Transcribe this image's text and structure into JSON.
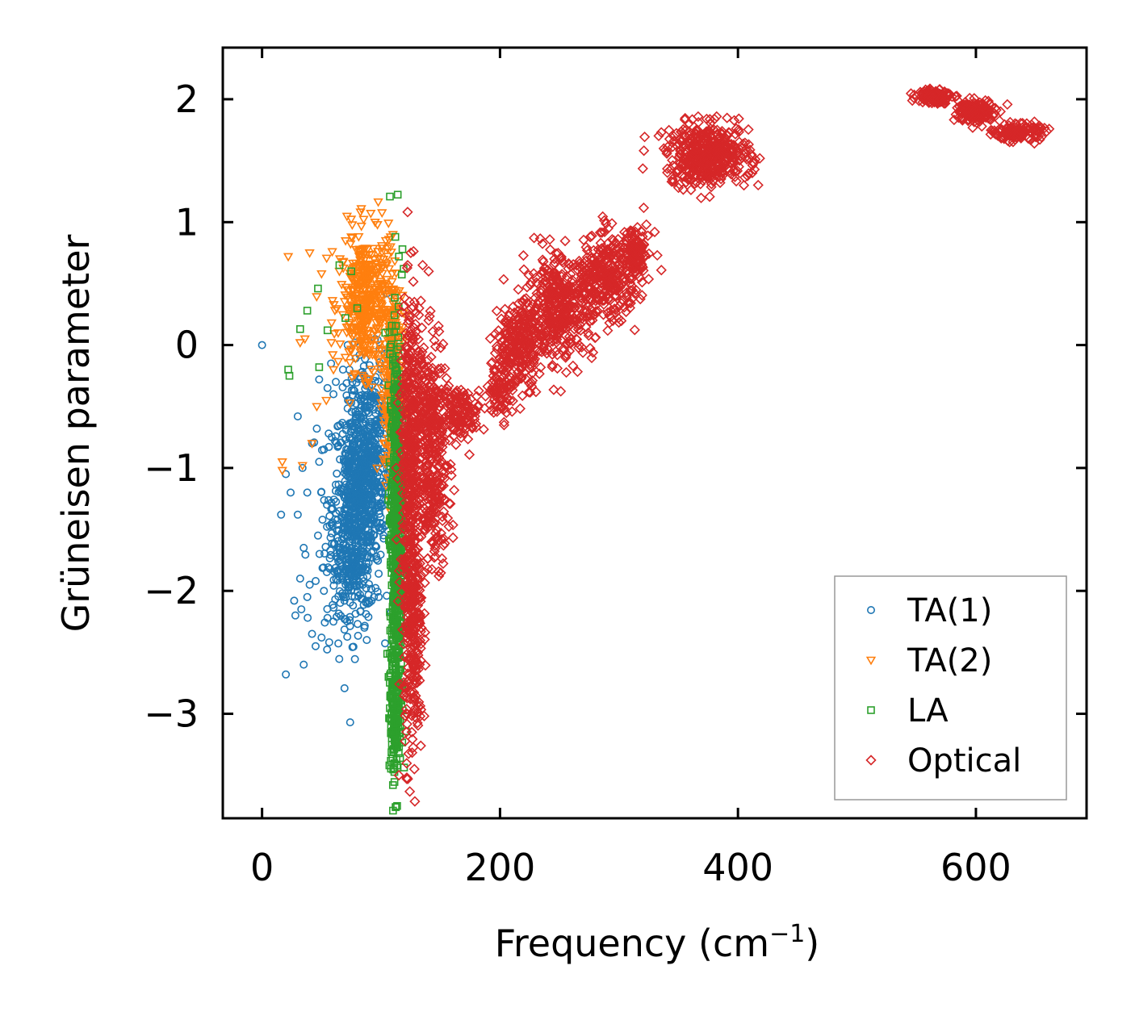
{
  "chart_data": {
    "type": "scatter",
    "title": "",
    "xlabel": "Frequency (cm",
    "xlabel_sup": "−1",
    "xlabel_close": ")",
    "ylabel": "Grüneisen parameter",
    "xlim": [
      -33,
      693
    ],
    "ylim": [
      -3.85,
      2.42
    ],
    "xticks": [
      0,
      200,
      400,
      600
    ],
    "xtick_labels": [
      "0",
      "200",
      "400",
      "600"
    ],
    "yticks": [
      -3,
      -2,
      -1,
      0,
      1,
      2
    ],
    "ytick_labels": [
      "−3",
      "−2",
      "−1",
      "0",
      "1",
      "2"
    ],
    "legend_position": "lower-right",
    "series": [
      {
        "name": "TA(1)",
        "marker": "circle",
        "color": "#1f77b4",
        "points": [
          [
            0,
            0
          ],
          [
            20,
            -2.68
          ],
          [
            35,
            -2.6
          ],
          [
            28,
            -2.2
          ],
          [
            33,
            -2.15
          ],
          [
            38,
            -2.05
          ],
          [
            42,
            -2.35
          ],
          [
            45,
            -2.45
          ],
          [
            50,
            -2.38
          ],
          [
            55,
            -2.22
          ],
          [
            60,
            -2.25
          ],
          [
            52,
            -2.0
          ],
          [
            27,
            -2.08
          ],
          [
            32,
            -1.9
          ],
          [
            40,
            -1.95
          ],
          [
            35,
            -1.65
          ],
          [
            47,
            -1.55
          ],
          [
            16,
            -1.38
          ],
          [
            24,
            -1.2
          ],
          [
            30,
            -1.38
          ],
          [
            38,
            -1.2
          ],
          [
            34,
            -1.0
          ],
          [
            20,
            -1.05
          ],
          [
            48,
            -0.95
          ],
          [
            52,
            -0.85
          ],
          [
            42,
            -0.8
          ],
          [
            30,
            -0.58
          ],
          [
            46,
            -0.68
          ],
          [
            56,
            -0.72
          ],
          [
            60,
            -0.4
          ],
          [
            55,
            -0.35
          ],
          [
            62,
            -0.3
          ],
          [
            48,
            -0.28
          ],
          [
            58,
            -0.15
          ],
          [
            68,
            -0.2
          ],
          [
            72,
            0.0
          ],
          [
            82,
            -0.08
          ],
          [
            78,
            0.02
          ],
          [
            95,
            0.05
          ],
          [
            105,
            0.42
          ],
          [
            92,
            -0.4
          ],
          [
            86,
            -2.3
          ],
          [
            88,
            -2.4
          ],
          [
            98,
            -2.05
          ]
        ],
        "clusters": [
          {
            "cx": 80,
            "cy": -1.3,
            "sx": 13,
            "sy": 0.55,
            "n": 700
          },
          {
            "cx": 92,
            "cy": -0.8,
            "sx": 10,
            "sy": 0.45,
            "n": 250
          },
          {
            "cx": 70,
            "cy": -1.8,
            "sx": 14,
            "sy": 0.3,
            "n": 120
          }
        ]
      },
      {
        "name": "TA(2)",
        "marker": "triangle-down",
        "color": "#ff7f0e",
        "points": [
          [
            22,
            0.72
          ],
          [
            40,
            0.75
          ],
          [
            59,
            0.76
          ],
          [
            75,
            0.88
          ],
          [
            97,
            0.98
          ],
          [
            95,
            1.0
          ],
          [
            108,
            0.8
          ],
          [
            110,
            0.9
          ],
          [
            100,
            0.7
          ],
          [
            82,
            0.78
          ],
          [
            65,
            0.6
          ],
          [
            50,
            0.58
          ],
          [
            32,
            0.02
          ],
          [
            36,
            0.05
          ],
          [
            46,
            -0.5
          ],
          [
            54,
            -0.45
          ],
          [
            17,
            -0.95
          ],
          [
            17,
            -1.02
          ],
          [
            34,
            -0.98
          ],
          [
            42,
            -0.8
          ],
          [
            60,
            -0.2
          ],
          [
            70,
            -0.1
          ],
          [
            64,
            0.1
          ],
          [
            108,
            0.88
          ],
          [
            104,
            0.85
          ]
        ],
        "clusters": [
          {
            "cx": 88,
            "cy": 0.35,
            "sx": 14,
            "sy": 0.35,
            "n": 420
          },
          {
            "cx": 110,
            "cy": -0.4,
            "sx": 5,
            "sy": 0.5,
            "n": 260
          }
        ]
      },
      {
        "name": "LA",
        "marker": "square",
        "color": "#2ca02c",
        "points": [
          [
            47,
            0.46
          ],
          [
            38,
            0.28
          ],
          [
            32,
            0.13
          ],
          [
            55,
            0.12
          ],
          [
            48,
            -0.18
          ],
          [
            22,
            -0.2
          ],
          [
            23,
            -0.25
          ],
          [
            110,
            -3.58
          ],
          [
            107,
            -3.42
          ],
          [
            115,
            0.72
          ],
          [
            119,
            0.62
          ],
          [
            80,
            0.3
          ],
          [
            70,
            0.22
          ],
          [
            65,
            0.65
          ],
          [
            75,
            0.6
          ],
          [
            112,
            0.88
          ],
          [
            118,
            0.78
          ]
        ],
        "clusters": [
          {
            "cx": 113,
            "cy": -1.5,
            "sx": 3.5,
            "sy": 0.95,
            "n": 650
          },
          {
            "cx": 112,
            "cy": -2.9,
            "sx": 3,
            "sy": 0.35,
            "n": 160
          }
        ]
      },
      {
        "name": "Optical",
        "marker": "diamond",
        "color": "#d62728",
        "points": [
          [
            125,
            0.75
          ],
          [
            135,
            0.65
          ],
          [
            140,
            0.6
          ],
          [
            128,
            0.35
          ],
          [
            132,
            0.3
          ],
          [
            140,
            0.2
          ],
          [
            128,
            -3.45
          ],
          [
            115,
            -3.5
          ],
          [
            330,
            0.92
          ],
          [
            323,
            0.98
          ],
          [
            345,
            1.35
          ],
          [
            350,
            1.28
          ],
          [
            405,
            1.3
          ],
          [
            412,
            1.4
          ]
        ],
        "clusters": [
          {
            "cx": 127,
            "cy": -2.3,
            "sx": 5,
            "sy": 0.65,
            "n": 300
          },
          {
            "cx": 124,
            "cy": -0.9,
            "sx": 5,
            "sy": 0.75,
            "n": 350
          },
          {
            "cx": 140,
            "cy": -0.6,
            "sx": 10,
            "sy": 0.4,
            "n": 300
          },
          {
            "cx": 145,
            "cy": -1.3,
            "sx": 8,
            "sy": 0.3,
            "n": 150
          },
          {
            "cx": 168,
            "cy": -0.55,
            "sx": 10,
            "sy": 0.12,
            "n": 120
          },
          {
            "cx": 200,
            "cy": -0.35,
            "sx": 6,
            "sy": 0.15,
            "n": 80
          },
          {
            "cx": 215,
            "cy": 0.0,
            "sx": 12,
            "sy": 0.22,
            "n": 250
          },
          {
            "cx": 250,
            "cy": 0.3,
            "sx": 18,
            "sy": 0.25,
            "n": 400
          },
          {
            "cx": 290,
            "cy": 0.55,
            "sx": 16,
            "sy": 0.22,
            "n": 300
          },
          {
            "cx": 315,
            "cy": 0.72,
            "sx": 6,
            "sy": 0.15,
            "n": 100
          },
          {
            "cx": 375,
            "cy": 1.55,
            "sx": 22,
            "sy": 0.15,
            "n": 450
          },
          {
            "cx": 565,
            "cy": 2.03,
            "sx": 9,
            "sy": 0.04,
            "n": 120
          },
          {
            "cx": 600,
            "cy": 1.9,
            "sx": 10,
            "sy": 0.06,
            "n": 150
          },
          {
            "cx": 635,
            "cy": 1.73,
            "sx": 12,
            "sy": 0.04,
            "n": 150
          }
        ]
      }
    ]
  }
}
